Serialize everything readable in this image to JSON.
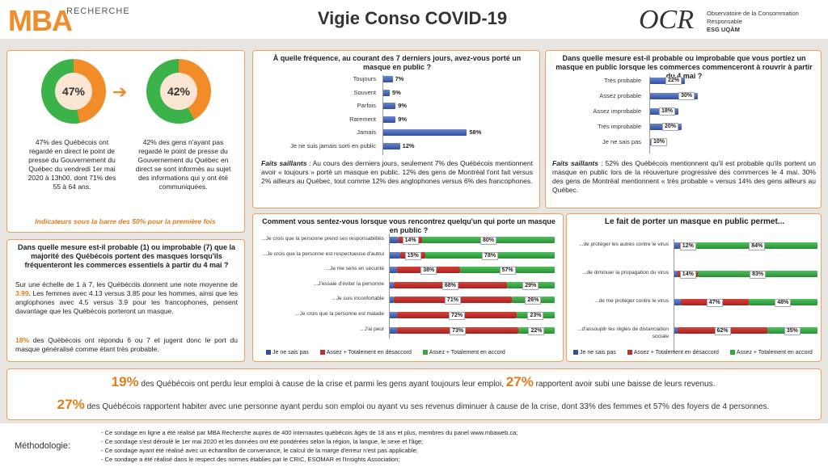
{
  "header": {
    "logo_mba": "MBA",
    "logo_recherche": "RECHERCHE",
    "title": "Vigie Conso COVID-19",
    "ocr_logo": "OCR",
    "ocr_line1": "Observatoire de la Consommation Responsable",
    "ocr_line2": "ESG UQÀM"
  },
  "donuts": {
    "left_value": "47%",
    "left_text": "47% des Québécois ont regardé en direct le point de presse du Gouvernement du Québec du vendredi 1er mai 2020 à 13h00, dont 71% des 55 à 64 ans.",
    "right_value": "42%",
    "right_text": "42% des gens n'ayant pas regardé le point de presse du Gouvernement du Québec en direct se sont informés au sujet des informations qui y ont été communiquées.",
    "note": "Indicateurs sous la barre des 50% pour la première fois",
    "arrow": "➔"
  },
  "freq": {
    "question": "À quelle fréquence, au courant des 7 derniers jours, avez-vous porté un masque en public ?",
    "rows": [
      {
        "label": "Toujours",
        "value": "7%"
      },
      {
        "label": "Souvent",
        "value": "5%"
      },
      {
        "label": "Parfois",
        "value": "9%"
      },
      {
        "label": "Rarement",
        "value": "9%"
      },
      {
        "label": "Jamais",
        "value": "58%"
      },
      {
        "label": "Je ne suis jamais sorti en public",
        "value": "12%"
      }
    ],
    "faits_label": "Faits saillants",
    "faits": " : Au cours des derniers jours, seulement 7% des Québécois mentionnent avoir « toujours » porté un masque en public. 12% des gens de Montréal l'ont fait versus 2% ailleurs au Québec, tout comme 12% des anglophones versus 6% des francophones."
  },
  "prob": {
    "question": "Dans quelle mesure est-il probable ou improbable que vous portiez un masque en public lorsque les commerces commenceront à rouvrir à partir du 4 mai ?",
    "rows": [
      {
        "label": "Très probable",
        "value": "22%"
      },
      {
        "label": "Assez probable",
        "value": "30%"
      },
      {
        "label": "Assez improbable",
        "value": "18%"
      },
      {
        "label": "Très improbable",
        "value": "20%"
      },
      {
        "label": "Je ne sais pas",
        "value": "10%"
      }
    ],
    "faits_label": "Faits saillants",
    "faits": " : 52% des Québécois mentionnent qu'il est probable qu'ils portent un masque en public lors de la réouverture progressive des commerces le 4 mai. 30% des gens de Montréal mentionnent « très probable » versus 14% des gens ailleurs au Québec."
  },
  "scale": {
    "question": "Dans quelle mesure est-il probable (1) ou improbable (7) que la majorité des Québécois portent des masques lorsqu'ils fréquenteront les commerces essentiels à partir du 4 mai ?",
    "p1a": "Sur une échelle de 1 à 7, les Québécois donnent une note moyenne de ",
    "p1b": "3.99",
    "p1c": ". Les femmes avec 4.13 versus 3.85 pour les hommes, ainsi que les anglophones avec 4.5 versus 3.9 pour les francophones, pensent davantage que les Québécois porteront un masque.",
    "p2a": "18%",
    "p2b": " des Québécois ont répondu 6 ou 7 et jugent donc le port du masque généralisé comme étant très probable."
  },
  "feel": {
    "question": "Comment vous sentez-vous lorsque vous rencontrez quelqu'un qui porte un masque en public ?",
    "rows": [
      {
        "label": "...Je crois que la personne prend ses responsabilités",
        "red": "14%",
        "green": "80%"
      },
      {
        "label": "...Je crois que la personne est respectueuse d'autrui",
        "red": "15%",
        "green": "78%"
      },
      {
        "label": "...Je me sens en sécurité",
        "red": "38%",
        "green": "57%"
      },
      {
        "label": "...J'essaie d'éviter la personne",
        "red": "68%",
        "green": "29%"
      },
      {
        "label": "...Je suis inconfortable",
        "red": "71%",
        "green": "26%"
      },
      {
        "label": "...Je crois que la personne est malade",
        "red": "72%",
        "green": "23%"
      },
      {
        "label": "...J'ai peur",
        "red": "73%",
        "green": "22%"
      }
    ],
    "legend": [
      "Je ne sais pas",
      "Assez + Totalement en désaccord",
      "Assez + Totalement en accord"
    ]
  },
  "fact": {
    "question": "Le fait de porter un masque en public permet...",
    "rows": [
      {
        "label": "...de protéger les autres contre le virus",
        "red": "12%",
        "green": "84%"
      },
      {
        "label": "...de diminuer la propagation du virus",
        "red": "14%",
        "green": "83%"
      },
      {
        "label": "...de me protéger contre le virus",
        "red": "47%",
        "green": "48%"
      },
      {
        "label": "...d'assouplir les règles de distanciation sociale",
        "red": "62%",
        "green": "35%"
      }
    ],
    "legend": [
      "Je ne sais pas",
      "Assez + Totalement en désaccord",
      "Assez + Totalement en accord"
    ]
  },
  "emploi": {
    "b1": "19%",
    "t1": " des Québécois ont perdu leur emploi à cause de la crise et parmi les gens ayant toujours leur emploi, ",
    "b2": "27%",
    "t2": " rapportent avoir subi une baisse de leurs revenus.",
    "b3": "27%",
    "t3": " des Québécois rapportent habiter avec une personne ayant perdu son emploi ou ayant vu ses revenus diminuer à cause de la crise, dont 33% des femmes et 57% des foyers de 4 personnes."
  },
  "methodo": {
    "label": "Méthodologie:",
    "items": [
      "Ce sondage en ligne a été réalisé par MBA Recherche auprès de 400 internautes québécois âgés de 18 ans et plus, membres du panel www.mbaweb.ca;",
      "Ce sondage s'est déroulé le 1er mai 2020 et les données ont été pondérées selon la région, la langue, le sexe et l'âge;",
      "Ce sondage ayant été réalisé avec un échantillon de convenance, le calcul de la marge d'erreur n'est pas applicable;",
      "Ce sondage a été réalisé dans le respect des normes établies par le CRIC, ESOMAR et l'Insights Association;"
    ]
  },
  "colors": {
    "accent": "#f28c28",
    "blue": "#2f4fa0",
    "red": "#c0302a",
    "green": "#33a640"
  }
}
